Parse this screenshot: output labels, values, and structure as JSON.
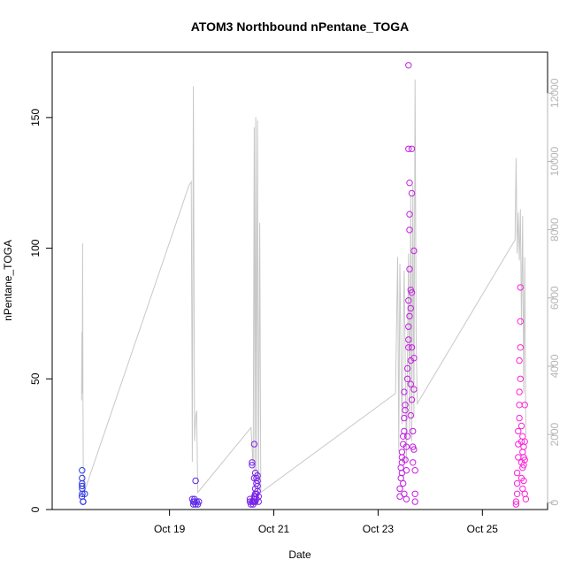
{
  "chart_data": {
    "type": "scatter",
    "title": "ATOM3 Northbound nPentane_TOGA",
    "xlabel": "Date",
    "ylabel": "nPentane_TOGA",
    "x_is_date": true,
    "xlim": [
      "2017-10-16T18:00",
      "2017-10-26T06:00"
    ],
    "ylim": [
      0,
      175
    ],
    "y_ticks": [
      0,
      50,
      100,
      150
    ],
    "x_ticks": [
      {
        "date": "2017-10-19T00:00",
        "label": "Oct 19"
      },
      {
        "date": "2017-10-21T00:00",
        "label": "Oct 21"
      },
      {
        "date": "2017-10-23T00:00",
        "label": "Oct 23"
      },
      {
        "date": "2017-10-25T00:00",
        "label": "Oct 25"
      }
    ],
    "secondary_axis": {
      "ylim": [
        -200,
        13200
      ],
      "ticks": [
        0,
        2000,
        4000,
        6000,
        8000,
        10000,
        12000
      ],
      "color": "#b5b5b5"
    },
    "grid": false,
    "legend": "none",
    "point_style": "open-circle",
    "color_gradient": [
      "#2a36e8",
      "#8e1ce8",
      "#ff22d8"
    ],
    "line_color": "#c8c8c8",
    "altitude_trace": [
      [
        "2017-10-17T07:30",
        3000
      ],
      [
        "2017-10-17T07:40",
        5000
      ],
      [
        "2017-10-17T07:50",
        3200
      ],
      [
        "2017-10-17T08:00",
        7600
      ],
      [
        "2017-10-17T08:10",
        3000
      ],
      [
        "2017-10-17T08:20",
        600
      ],
      [
        "2017-10-17T08:40",
        300
      ],
      [
        "2017-10-19T09:00",
        9300
      ],
      [
        "2017-10-19T10:00",
        9400
      ],
      [
        "2017-10-19T10:30",
        1200
      ],
      [
        "2017-10-19T11:00",
        12200
      ],
      [
        "2017-10-19T11:30",
        1800
      ],
      [
        "2017-10-19T12:00",
        2500
      ],
      [
        "2017-10-19T12:30",
        2700
      ],
      [
        "2017-10-19T13:00",
        300
      ],
      [
        "2017-10-20T13:30",
        2200
      ],
      [
        "2017-10-20T14:00",
        1600
      ],
      [
        "2017-10-20T14:30",
        1000
      ],
      [
        "2017-10-20T15:00",
        11000
      ],
      [
        "2017-10-20T15:20",
        800
      ],
      [
        "2017-10-20T15:40",
        11300
      ],
      [
        "2017-10-20T16:00",
        900
      ],
      [
        "2017-10-20T16:30",
        11200
      ],
      [
        "2017-10-20T17:00",
        500
      ],
      [
        "2017-10-20T17:30",
        8200
      ],
      [
        "2017-10-20T18:00",
        300
      ],
      [
        "2017-10-23T08:00",
        3200
      ],
      [
        "2017-10-23T09:00",
        7200
      ],
      [
        "2017-10-23T09:30",
        1500
      ],
      [
        "2017-10-23T10:00",
        7000
      ],
      [
        "2017-10-23T11:00",
        2300
      ],
      [
        "2017-10-23T12:00",
        6800
      ],
      [
        "2017-10-23T13:00",
        1200
      ],
      [
        "2017-10-23T14:00",
        7300
      ],
      [
        "2017-10-23T14:30",
        2000
      ],
      [
        "2017-10-23T15:00",
        9000
      ],
      [
        "2017-10-23T15:30",
        1800
      ],
      [
        "2017-10-23T16:00",
        9300
      ],
      [
        "2017-10-23T16:30",
        2500
      ],
      [
        "2017-10-23T17:00",
        12400
      ],
      [
        "2017-10-23T17:30",
        5000
      ],
      [
        "2017-10-23T18:00",
        2900
      ],
      [
        "2017-10-25T15:00",
        7700
      ],
      [
        "2017-10-25T15:30",
        10100
      ],
      [
        "2017-10-25T16:00",
        7300
      ],
      [
        "2017-10-25T16:30",
        8500
      ],
      [
        "2017-10-25T17:00",
        7100
      ],
      [
        "2017-10-25T17:30",
        8600
      ],
      [
        "2017-10-25T18:00",
        5200
      ],
      [
        "2017-10-25T18:30",
        8400
      ],
      [
        "2017-10-25T19:00",
        3200
      ],
      [
        "2017-10-25T19:30",
        7200
      ],
      [
        "2017-10-25T20:00",
        2000
      ]
    ],
    "points": [
      [
        "2017-10-17T07:45",
        15
      ],
      [
        "2017-10-17T07:45",
        12
      ],
      [
        "2017-10-17T07:45",
        10
      ],
      [
        "2017-10-17T07:45",
        9
      ],
      [
        "2017-10-17T07:48",
        8
      ],
      [
        "2017-10-17T07:50",
        6
      ],
      [
        "2017-10-17T07:40",
        5
      ],
      [
        "2017-10-17T08:10",
        3
      ],
      [
        "2017-10-17T08:15",
        3
      ],
      [
        "2017-10-17T09:00",
        6
      ],
      [
        "2017-10-19T10:30",
        4
      ],
      [
        "2017-10-19T11:00",
        3
      ],
      [
        "2017-10-19T11:00",
        2
      ],
      [
        "2017-10-19T11:30",
        4
      ],
      [
        "2017-10-19T11:30",
        3
      ],
      [
        "2017-10-19T12:00",
        11
      ],
      [
        "2017-10-19T12:00",
        2
      ],
      [
        "2017-10-19T12:30",
        3
      ],
      [
        "2017-10-19T13:00",
        2
      ],
      [
        "2017-10-19T13:30",
        3
      ],
      [
        "2017-10-20T13:00",
        3
      ],
      [
        "2017-10-20T13:00",
        4
      ],
      [
        "2017-10-20T13:30",
        2
      ],
      [
        "2017-10-20T14:00",
        18
      ],
      [
        "2017-10-20T14:00",
        17
      ],
      [
        "2017-10-20T14:00",
        3
      ],
      [
        "2017-10-20T14:30",
        3
      ],
      [
        "2017-10-20T14:30",
        2
      ],
      [
        "2017-10-20T15:00",
        5
      ],
      [
        "2017-10-20T15:00",
        25
      ],
      [
        "2017-10-20T15:00",
        12
      ],
      [
        "2017-10-20T15:00",
        4
      ],
      [
        "2017-10-20T15:00",
        3
      ],
      [
        "2017-10-20T15:30",
        8
      ],
      [
        "2017-10-20T15:30",
        6
      ],
      [
        "2017-10-20T15:30",
        5
      ],
      [
        "2017-10-20T15:30",
        14
      ],
      [
        "2017-10-20T15:30",
        3
      ],
      [
        "2017-10-20T16:00",
        12
      ],
      [
        "2017-10-20T16:00",
        10
      ],
      [
        "2017-10-20T16:00",
        6
      ],
      [
        "2017-10-20T16:00",
        4
      ],
      [
        "2017-10-20T16:30",
        13
      ],
      [
        "2017-10-20T16:30",
        11
      ],
      [
        "2017-10-20T16:30",
        9
      ],
      [
        "2017-10-20T16:30",
        7
      ],
      [
        "2017-10-20T17:00",
        5
      ],
      [
        "2017-10-20T17:00",
        3
      ],
      [
        "2017-10-23T10:00",
        5
      ],
      [
        "2017-10-23T10:00",
        8
      ],
      [
        "2017-10-23T10:30",
        12
      ],
      [
        "2017-10-23T10:30",
        16
      ],
      [
        "2017-10-23T11:00",
        18
      ],
      [
        "2017-10-23T11:00",
        20
      ],
      [
        "2017-10-23T11:00",
        22
      ],
      [
        "2017-10-23T11:00",
        14
      ],
      [
        "2017-10-23T11:30",
        25
      ],
      [
        "2017-10-23T11:30",
        28
      ],
      [
        "2017-10-23T11:30",
        10
      ],
      [
        "2017-10-23T12:00",
        30
      ],
      [
        "2017-10-23T12:00",
        35
      ],
      [
        "2017-10-23T12:00",
        45
      ],
      [
        "2017-10-23T12:00",
        6
      ],
      [
        "2017-10-23T12:30",
        38
      ],
      [
        "2017-10-23T12:30",
        40
      ],
      [
        "2017-10-23T12:30",
        19
      ],
      [
        "2017-10-23T13:00",
        4
      ],
      [
        "2017-10-23T13:00",
        15
      ],
      [
        "2017-10-23T13:00",
        24
      ],
      [
        "2017-10-23T13:30",
        50
      ],
      [
        "2017-10-23T13:30",
        54
      ],
      [
        "2017-10-23T13:30",
        28
      ],
      [
        "2017-10-23T14:00",
        62
      ],
      [
        "2017-10-23T14:00",
        65
      ],
      [
        "2017-10-23T14:00",
        70
      ],
      [
        "2017-10-23T14:00",
        80
      ],
      [
        "2017-10-23T14:00",
        138
      ],
      [
        "2017-10-23T14:00",
        170
      ],
      [
        "2017-10-23T14:30",
        92
      ],
      [
        "2017-10-23T14:30",
        107
      ],
      [
        "2017-10-23T14:30",
        113
      ],
      [
        "2017-10-23T14:30",
        125
      ],
      [
        "2017-10-23T14:30",
        74
      ],
      [
        "2017-10-23T15:00",
        77
      ],
      [
        "2017-10-23T15:00",
        84
      ],
      [
        "2017-10-23T15:00",
        57
      ],
      [
        "2017-10-23T15:00",
        48
      ],
      [
        "2017-10-23T15:00",
        36
      ],
      [
        "2017-10-23T15:30",
        121
      ],
      [
        "2017-10-23T15:30",
        138
      ],
      [
        "2017-10-23T15:30",
        83
      ],
      [
        "2017-10-23T15:30",
        62
      ],
      [
        "2017-10-23T15:30",
        42
      ],
      [
        "2017-10-23T16:00",
        30
      ],
      [
        "2017-10-23T16:00",
        24
      ],
      [
        "2017-10-23T16:00",
        18
      ],
      [
        "2017-10-23T16:30",
        99
      ],
      [
        "2017-10-23T16:30",
        58
      ],
      [
        "2017-10-23T16:30",
        46
      ],
      [
        "2017-10-23T16:30",
        23
      ],
      [
        "2017-10-23T17:00",
        15
      ],
      [
        "2017-10-23T17:00",
        6
      ],
      [
        "2017-10-23T17:00",
        3
      ],
      [
        "2017-10-25T15:30",
        2
      ],
      [
        "2017-10-25T15:30",
        3
      ],
      [
        "2017-10-25T16:00",
        6
      ],
      [
        "2017-10-25T16:00",
        10
      ],
      [
        "2017-10-25T16:00",
        14
      ],
      [
        "2017-10-25T16:30",
        20
      ],
      [
        "2017-10-25T16:30",
        25
      ],
      [
        "2017-10-25T16:30",
        30
      ],
      [
        "2017-10-25T17:00",
        35
      ],
      [
        "2017-10-25T17:00",
        40
      ],
      [
        "2017-10-25T17:00",
        45
      ],
      [
        "2017-10-25T17:00",
        57
      ],
      [
        "2017-10-25T17:30",
        50
      ],
      [
        "2017-10-25T17:30",
        62
      ],
      [
        "2017-10-25T17:30",
        72
      ],
      [
        "2017-10-25T17:30",
        85
      ],
      [
        "2017-10-25T18:00",
        32
      ],
      [
        "2017-10-25T18:00",
        26
      ],
      [
        "2017-10-25T18:00",
        18
      ],
      [
        "2017-10-25T18:00",
        12
      ],
      [
        "2017-10-25T18:30",
        22
      ],
      [
        "2017-10-25T18:30",
        28
      ],
      [
        "2017-10-25T18:30",
        16
      ],
      [
        "2017-10-25T18:30",
        8
      ],
      [
        "2017-10-25T19:00",
        20
      ],
      [
        "2017-10-25T19:00",
        24
      ],
      [
        "2017-10-25T19:00",
        17
      ],
      [
        "2017-10-25T19:00",
        11
      ],
      [
        "2017-10-25T19:30",
        40
      ],
      [
        "2017-10-25T19:30",
        26
      ],
      [
        "2017-10-25T19:30",
        19
      ],
      [
        "2017-10-25T19:30",
        6
      ],
      [
        "2017-10-25T20:00",
        4
      ]
    ]
  }
}
